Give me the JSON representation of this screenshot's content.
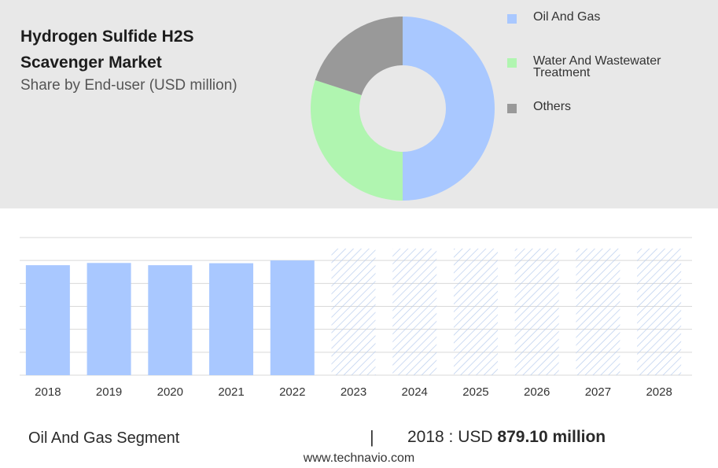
{
  "header": {
    "title": "Hydrogen Sulfide H2S Scavenger Market",
    "subtitle": "Share by End-user (USD million)"
  },
  "chart_data": [
    {
      "type": "pie",
      "variant": "donut",
      "categories": [
        "Oil And Gas",
        "Water And Wastewater Treatment",
        "Others"
      ],
      "values": [
        50,
        30,
        20
      ],
      "colors": [
        "#a9c8ff",
        "#b0f5b0",
        "#999999"
      ],
      "legend": "right"
    },
    {
      "type": "bar",
      "categories": [
        "2018",
        "2019",
        "2020",
        "2021",
        "2022",
        "2023",
        "2024",
        "2025",
        "2026",
        "2027",
        "2028"
      ],
      "values": [
        879.1,
        897,
        879,
        895,
        917,
        null,
        null,
        null,
        null,
        null,
        null
      ],
      "forecast_from": "2023",
      "ylim": [
        0,
        1100
      ],
      "grid": true,
      "bar_color": "#a9c8ff",
      "forecast_pattern": "diagonal-hatch"
    }
  ],
  "footer": {
    "segment": "Oil And Gas Segment",
    "separator": "|",
    "value_prefix": "2018 : USD",
    "value_bold": "879.10 million",
    "website": "www.technavio.com"
  }
}
